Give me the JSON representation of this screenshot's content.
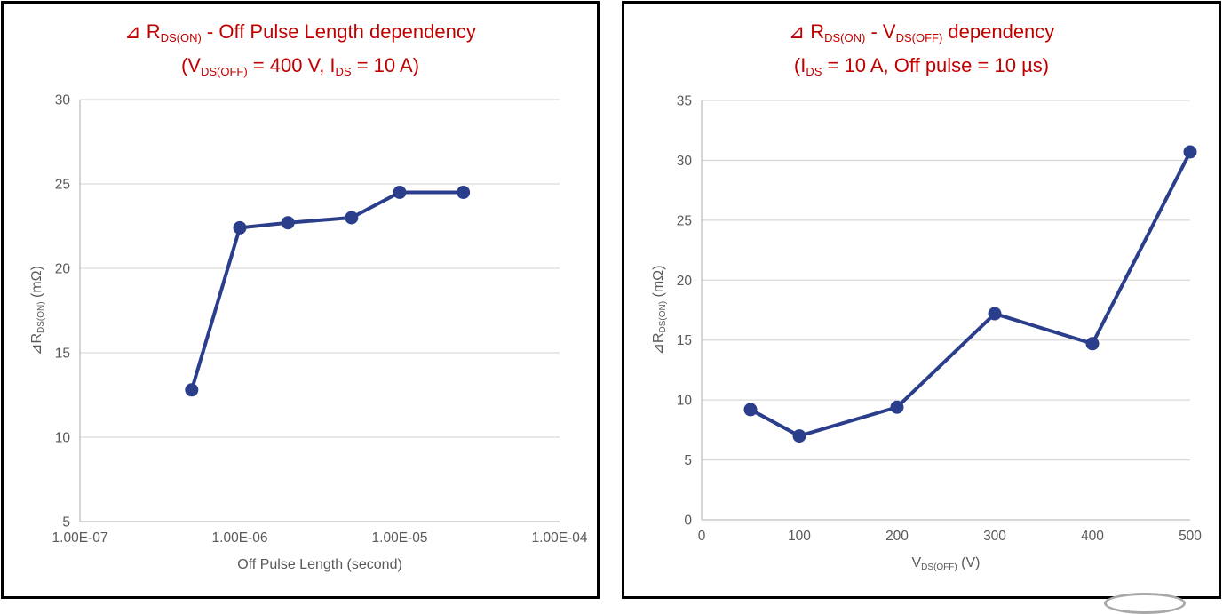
{
  "styles": {
    "line_color": "#2b3e8c",
    "marker_color": "#2b3e8c",
    "title_color": "#c00000",
    "axis_text_color": "#595959",
    "gridline_color": "#d9d9d9",
    "axis_line_color": "#bfbfbf",
    "panel_border_color": "#000000"
  },
  "chart_data": [
    {
      "type": "line",
      "title": "⊿ RDS(ON) - Off Pulse Length dependency",
      "subtitle": "(VDS(OFF) = 400 V, IDS = 10 A)",
      "title_segments": [
        {
          "t": "⊿ R"
        },
        {
          "t": "DS(ON)",
          "sub": true
        },
        {
          "t": " - Off Pulse Length dependency"
        }
      ],
      "subtitle_segments": [
        {
          "t": "(V"
        },
        {
          "t": "DS(OFF)",
          "sub": true
        },
        {
          "t": " = 400 V, I"
        },
        {
          "t": "DS",
          "sub": true
        },
        {
          "t": " = 10 A)"
        }
      ],
      "xlabel": "Off Pulse Length (second)",
      "xlabel_segments": [
        {
          "t": "Off Pulse Length (second)"
        }
      ],
      "ylabel": "⊿RDS(ON) (mΩ)",
      "ylabel_segments": [
        {
          "t": "⊿R"
        },
        {
          "t": "DS(ON)",
          "sub": true
        },
        {
          "t": " (mΩ)"
        }
      ],
      "x_scale": "log",
      "x": [
        5e-07,
        1e-06,
        2e-06,
        5e-06,
        1e-05,
        2.5e-05
      ],
      "y": [
        12.8,
        22.4,
        22.7,
        23.0,
        24.5,
        24.5
      ],
      "xlim": [
        1e-07,
        0.0001
      ],
      "ylim": [
        5,
        30
      ],
      "x_tick_values": [
        1e-07,
        1e-06,
        1e-05,
        0.0001
      ],
      "x_tick_labels": [
        "1.00E-07",
        "1.00E-06",
        "1.00E-05",
        "1.00E-04"
      ],
      "y_tick_values": [
        5,
        10,
        15,
        20,
        25,
        30
      ],
      "y_tick_labels": [
        "5",
        "10",
        "15",
        "20",
        "25",
        "30"
      ],
      "grid": "horizontal",
      "legend": "none"
    },
    {
      "type": "line",
      "title": "⊿ RDS(ON) - VDS(OFF) dependency",
      "subtitle": "(IDS = 10 A, Off pulse = 10 µs)",
      "title_segments": [
        {
          "t": "⊿ R"
        },
        {
          "t": "DS(ON)",
          "sub": true
        },
        {
          "t": " - V"
        },
        {
          "t": "DS(OFF)",
          "sub": true
        },
        {
          "t": " dependency"
        }
      ],
      "subtitle_segments": [
        {
          "t": "(I"
        },
        {
          "t": "DS",
          "sub": true
        },
        {
          "t": " = 10 A, Off pulse = 10 µs)"
        }
      ],
      "xlabel": "VDS(OFF) (V)",
      "xlabel_segments": [
        {
          "t": "V"
        },
        {
          "t": "DS(OFF)",
          "sub": true
        },
        {
          "t": " (V)"
        }
      ],
      "ylabel": "⊿RDS(ON) (mΩ)",
      "ylabel_segments": [
        {
          "t": "⊿R"
        },
        {
          "t": "DS(ON)",
          "sub": true
        },
        {
          "t": " (mΩ)"
        }
      ],
      "x_scale": "linear",
      "x": [
        50,
        100,
        200,
        300,
        400,
        500
      ],
      "y": [
        9.2,
        7.0,
        9.4,
        17.2,
        14.7,
        30.7
      ],
      "xlim": [
        0,
        500
      ],
      "ylim": [
        0,
        35
      ],
      "x_tick_values": [
        0,
        100,
        200,
        300,
        400,
        500
      ],
      "x_tick_labels": [
        "0",
        "100",
        "200",
        "300",
        "400",
        "500"
      ],
      "y_tick_values": [
        0,
        5,
        10,
        15,
        20,
        25,
        30,
        35
      ],
      "y_tick_labels": [
        "0",
        "5",
        "10",
        "15",
        "20",
        "25",
        "30",
        "35"
      ],
      "grid": "horizontal",
      "legend": "none"
    }
  ]
}
